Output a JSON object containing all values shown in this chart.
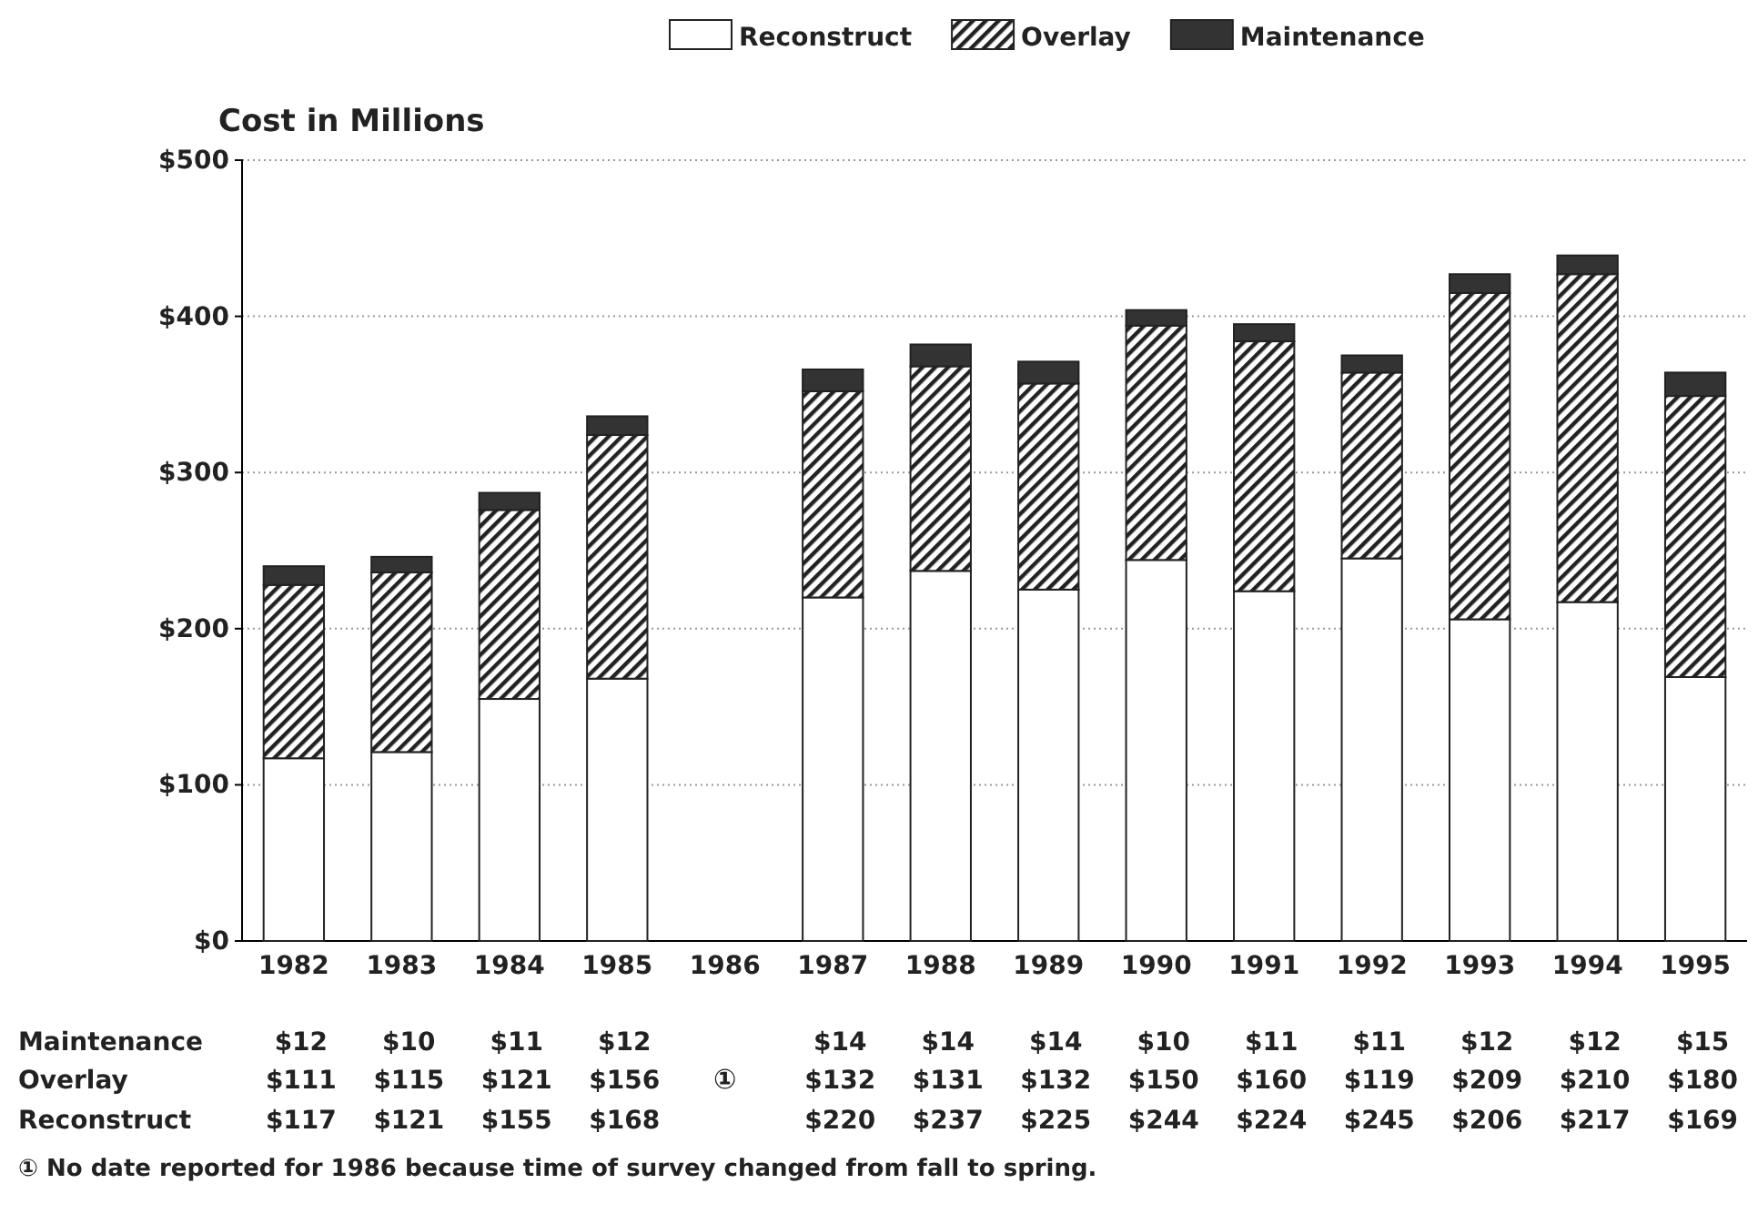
{
  "chart_data": {
    "type": "bar",
    "stacked": true,
    "ylabel": "Cost in Millions",
    "categories": [
      "1982",
      "1983",
      "1984",
      "1985",
      "1986",
      "1987",
      "1988",
      "1989",
      "1990",
      "1991",
      "1992",
      "1993",
      "1994",
      "1995"
    ],
    "series": [
      {
        "name": "Reconstruct",
        "color": "#ffffff",
        "values": [
          117,
          121,
          155,
          168,
          null,
          220,
          237,
          225,
          244,
          224,
          245,
          206,
          217,
          169
        ],
        "value_labels": [
          "$117",
          "$121",
          "$155",
          "$168",
          null,
          "$220",
          "$237",
          "$225",
          "$244",
          "$224",
          "$245",
          "$206",
          "$217",
          "$169"
        ]
      },
      {
        "name": "Overlay",
        "color": "#222222",
        "values": [
          111,
          115,
          121,
          156,
          null,
          132,
          131,
          132,
          150,
          160,
          119,
          209,
          210,
          180
        ],
        "value_labels": [
          "$111",
          "$115",
          "$121",
          "$156",
          null,
          "$132",
          "$131",
          "$132",
          "$150",
          "$160",
          "$119",
          "$209",
          "$210",
          "$180"
        ]
      },
      {
        "name": "Maintenance",
        "color": "#333333",
        "values": [
          12,
          10,
          11,
          12,
          null,
          14,
          14,
          14,
          10,
          11,
          11,
          12,
          12,
          15
        ],
        "value_labels": [
          "$12",
          "$10",
          "$11",
          "$12",
          null,
          "$14",
          "$14",
          "$14",
          "$10",
          "$11",
          "$11",
          "$12",
          "$12",
          "$15"
        ]
      }
    ],
    "ylim": [
      0,
      500
    ],
    "yticks": [
      {
        "value": 0,
        "label": "$0"
      },
      {
        "value": 100,
        "label": "$100"
      },
      {
        "value": 200,
        "label": "$200"
      },
      {
        "value": 300,
        "label": "$300"
      },
      {
        "value": 400,
        "label": "$400"
      },
      {
        "value": 500,
        "label": "$500"
      }
    ],
    "grid": "y",
    "legend": "top",
    "annotations": [
      "①",
      "① No date reported for 1986 because time of survey changed from fall to spring."
    ]
  }
}
